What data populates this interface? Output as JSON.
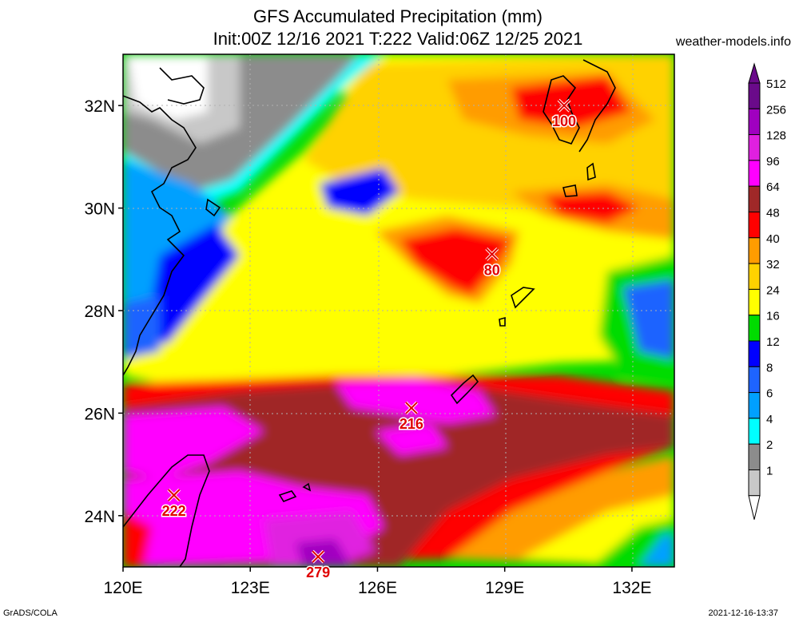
{
  "title": "GFS Accumulated Precipitation (mm)",
  "subtitle": "Init:00Z 12/16 2021 T:222 Valid:06Z 12/25 2021",
  "site": "weather-models.info",
  "footer_left": "GrADS/COLA",
  "footer_right": "2021-12-16-13:37",
  "lat_labels": [
    "32N",
    "30N",
    "28N",
    "26N",
    "24N"
  ],
  "lon_labels": [
    "120E",
    "123E",
    "126E",
    "129E",
    "132E"
  ],
  "legend": [
    {
      "label": "512",
      "color": "#6a0a8a"
    },
    {
      "label": "256",
      "color": "#a000c0"
    },
    {
      "label": "128",
      "color": "#e020e0"
    },
    {
      "label": "96",
      "color": "#ff00ff"
    },
    {
      "label": "64",
      "color": "#a02828"
    },
    {
      "label": "48",
      "color": "#ff0000"
    },
    {
      "label": "40",
      "color": "#ff9c00"
    },
    {
      "label": "32",
      "color": "#ffd200"
    },
    {
      "label": "24",
      "color": "#ffff00"
    },
    {
      "label": "16",
      "color": "#00dc00"
    },
    {
      "label": "12",
      "color": "#0000ff"
    },
    {
      "label": "8",
      "color": "#1e64ff"
    },
    {
      "label": "6",
      "color": "#00a0ff"
    },
    {
      "label": "4",
      "color": "#00ffff"
    },
    {
      "label": "2",
      "color": "#8c8c8c"
    },
    {
      "label": "1",
      "color": "#c8c8c8"
    }
  ],
  "maxima": [
    {
      "label": "100",
      "lon": 130.4,
      "lat": 32.0
    },
    {
      "label": "80",
      "lon": 128.7,
      "lat": 29.1
    },
    {
      "label": "216",
      "lon": 126.8,
      "lat": 26.1
    },
    {
      "label": "222",
      "lon": 121.2,
      "lat": 24.4
    },
    {
      "label": "279",
      "lon": 124.6,
      "lat": 23.2
    }
  ]
}
